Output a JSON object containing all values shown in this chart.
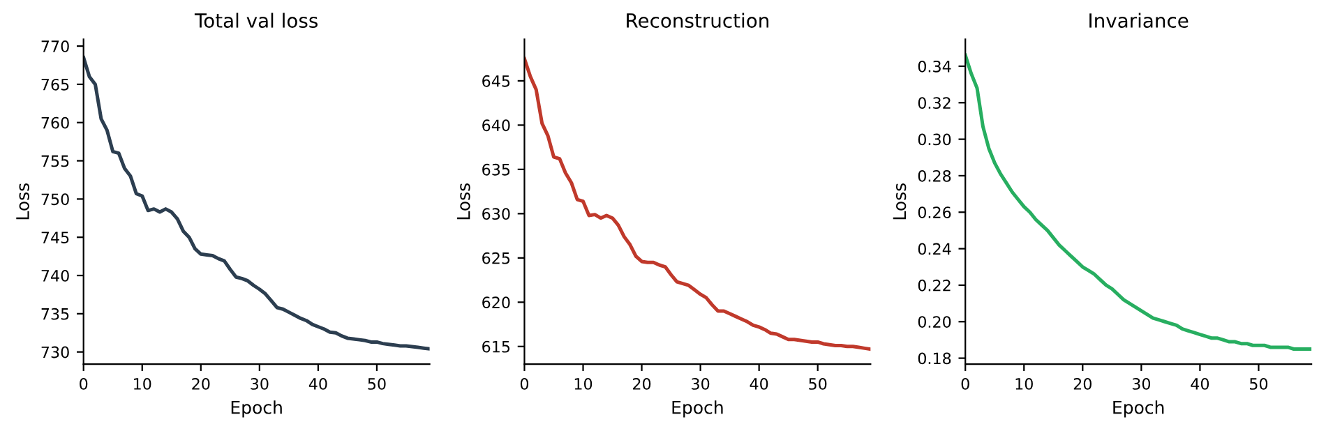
{
  "chart_data": [
    {
      "type": "line",
      "title": "Total val loss",
      "xlabel": "Epoch",
      "ylabel": "Loss",
      "x": [
        0,
        1,
        2,
        3,
        4,
        5,
        6,
        7,
        8,
        9,
        10,
        11,
        12,
        13,
        14,
        15,
        16,
        17,
        18,
        19,
        20,
        21,
        22,
        23,
        24,
        25,
        26,
        27,
        28,
        29,
        30,
        31,
        32,
        33,
        34,
        35,
        36,
        37,
        38,
        39,
        40,
        41,
        42,
        43,
        44,
        45,
        46,
        47,
        48,
        49,
        50,
        51,
        52,
        53,
        54,
        55,
        56,
        57,
        58,
        59
      ],
      "series": [
        {
          "color": "#2c3e50",
          "values": [
            768.5,
            766,
            765,
            760.5,
            759,
            756.2,
            756,
            754,
            753,
            750.7,
            750.4,
            748.5,
            748.7,
            748.3,
            748.7,
            748.3,
            747.4,
            745.8,
            745,
            743.5,
            742.8,
            742.7,
            742.6,
            742.2,
            741.9,
            740.8,
            739.8,
            739.6,
            739.3,
            738.7,
            738.2,
            737.6,
            736.7,
            735.8,
            735.6,
            735.2,
            734.8,
            734.4,
            734.1,
            733.6,
            733.3,
            733,
            732.6,
            732.5,
            732.1,
            731.8,
            731.7,
            731.6,
            731.5,
            731.3,
            731.3,
            731.1,
            731,
            730.9,
            730.8,
            730.8,
            730.7,
            730.6,
            730.5,
            730.4
          ]
        }
      ],
      "xlim": [
        0,
        59
      ],
      "xticks": [
        0,
        10,
        20,
        30,
        40,
        50
      ],
      "ylim": [
        728.4,
        770.9
      ],
      "yticks": [
        730,
        735,
        740,
        745,
        750,
        755,
        760,
        765,
        770
      ],
      "grid": false,
      "legend": false
    },
    {
      "type": "line",
      "title": "Reconstruction",
      "xlabel": "Epoch",
      "ylabel": "Loss",
      "x": [
        0,
        1,
        2,
        3,
        4,
        5,
        6,
        7,
        8,
        9,
        10,
        11,
        12,
        13,
        14,
        15,
        16,
        17,
        18,
        19,
        20,
        21,
        22,
        23,
        24,
        25,
        26,
        27,
        28,
        29,
        30,
        31,
        32,
        33,
        34,
        35,
        36,
        37,
        38,
        39,
        40,
        41,
        42,
        43,
        44,
        45,
        46,
        47,
        48,
        49,
        50,
        51,
        52,
        53,
        54,
        55,
        56,
        57,
        58,
        59
      ],
      "series": [
        {
          "color": "#c0392b",
          "values": [
            647.5,
            645.5,
            644,
            640.2,
            638.8,
            636.4,
            636.2,
            634.6,
            633.5,
            631.6,
            631.4,
            629.8,
            629.9,
            629.5,
            629.8,
            629.5,
            628.7,
            627.4,
            626.5,
            625.2,
            624.6,
            624.5,
            624.5,
            624.2,
            624,
            623.1,
            622.3,
            622.1,
            621.9,
            621.4,
            620.9,
            620.5,
            619.7,
            619,
            619,
            618.7,
            618.4,
            618.1,
            617.8,
            617.4,
            617.2,
            616.9,
            616.5,
            616.4,
            616.1,
            615.8,
            615.8,
            615.7,
            615.6,
            615.5,
            615.5,
            615.3,
            615.2,
            615.1,
            615.1,
            615,
            615,
            614.9,
            614.8,
            614.7
          ]
        }
      ],
      "xlim": [
        0,
        59
      ],
      "xticks": [
        0,
        10,
        20,
        30,
        40,
        50
      ],
      "ylim": [
        613.0,
        649.7
      ],
      "yticks": [
        615,
        620,
        625,
        630,
        635,
        640,
        645
      ],
      "grid": false,
      "legend": false
    },
    {
      "type": "line",
      "title": "Invariance",
      "xlabel": "Epoch",
      "ylabel": "Loss",
      "x": [
        0,
        1,
        2,
        3,
        4,
        5,
        6,
        7,
        8,
        9,
        10,
        11,
        12,
        13,
        14,
        15,
        16,
        17,
        18,
        19,
        20,
        21,
        22,
        23,
        24,
        25,
        26,
        27,
        28,
        29,
        30,
        31,
        32,
        33,
        34,
        35,
        36,
        37,
        38,
        39,
        40,
        41,
        42,
        43,
        44,
        45,
        46,
        47,
        48,
        49,
        50,
        51,
        52,
        53,
        54,
        55,
        56,
        57,
        58,
        59
      ],
      "series": [
        {
          "color": "#27ae60",
          "values": [
            0.346,
            0.336,
            0.328,
            0.307,
            0.295,
            0.287,
            0.281,
            0.276,
            0.271,
            0.267,
            0.263,
            0.26,
            0.256,
            0.253,
            0.25,
            0.246,
            0.242,
            0.239,
            0.236,
            0.233,
            0.23,
            0.228,
            0.226,
            0.223,
            0.22,
            0.218,
            0.215,
            0.212,
            0.21,
            0.208,
            0.206,
            0.204,
            0.202,
            0.201,
            0.2,
            0.199,
            0.198,
            0.196,
            0.195,
            0.194,
            0.193,
            0.192,
            0.191,
            0.191,
            0.19,
            0.189,
            0.189,
            0.188,
            0.188,
            0.187,
            0.187,
            0.187,
            0.186,
            0.186,
            0.186,
            0.186,
            0.185,
            0.185,
            0.185,
            0.185
          ]
        }
      ],
      "xlim": [
        0,
        59
      ],
      "xticks": [
        0,
        10,
        20,
        30,
        40,
        50
      ],
      "ylim": [
        0.1767,
        0.3548
      ],
      "yticks": [
        {
          "value": 0.18,
          "label": "0.18"
        },
        {
          "value": 0.2,
          "label": "0.20"
        },
        {
          "value": 0.22,
          "label": "0.22"
        },
        {
          "value": 0.24,
          "label": "0.24"
        },
        {
          "value": 0.26,
          "label": "0.26"
        },
        {
          "value": 0.28,
          "label": "0.28"
        },
        {
          "value": 0.3,
          "label": "0.30"
        },
        {
          "value": 0.32,
          "label": "0.32"
        },
        {
          "value": 0.34,
          "label": "0.34"
        }
      ],
      "grid": false,
      "legend": false
    }
  ]
}
